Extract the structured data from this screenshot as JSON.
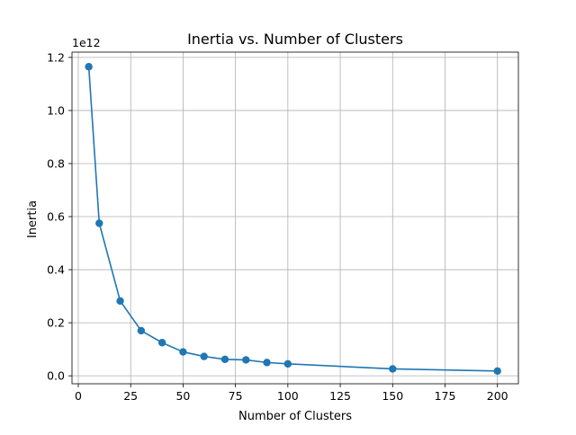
{
  "chart_data": {
    "type": "line",
    "title": "Inertia vs. Number of Clusters",
    "xlabel": "Number of Clusters",
    "ylabel": "Inertia",
    "y_offset_label": "1e12",
    "xlim": [
      -3,
      210
    ],
    "ylim": [
      -0.03,
      1.22
    ],
    "x_ticks": [
      0,
      25,
      50,
      75,
      100,
      125,
      150,
      175,
      200
    ],
    "x_tick_labels": [
      "0",
      "25",
      "50",
      "75",
      "100",
      "125",
      "150",
      "175",
      "200"
    ],
    "y_ticks": [
      0.0,
      0.2,
      0.4,
      0.6,
      0.8,
      1.0,
      1.2
    ],
    "y_tick_labels": [
      "0.0",
      "0.2",
      "0.4",
      "0.6",
      "0.8",
      "1.0",
      "1.2"
    ],
    "grid": true,
    "series": [
      {
        "color": "#1f77b4",
        "marker": "circle",
        "x": [
          5,
          10,
          20,
          30,
          40,
          50,
          60,
          70,
          80,
          90,
          100,
          150,
          200
        ],
        "y": [
          1.165,
          0.575,
          0.282,
          0.17,
          0.125,
          0.09,
          0.073,
          0.062,
          0.06,
          0.05,
          0.045,
          0.026,
          0.018
        ]
      }
    ]
  }
}
